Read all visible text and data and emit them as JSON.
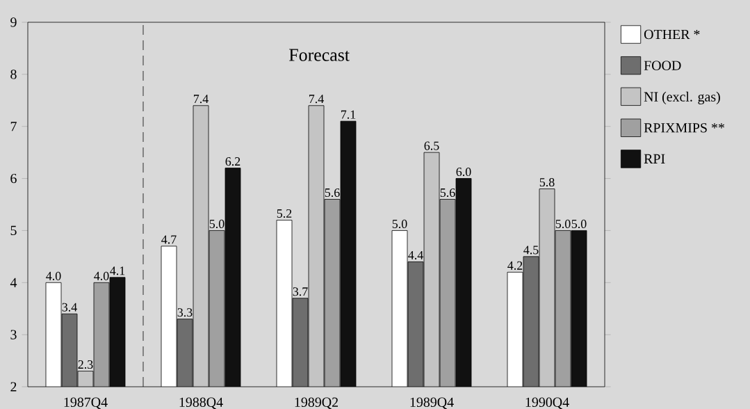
{
  "chart_data": {
    "type": "bar",
    "categories": [
      "1987Q4",
      "1988Q4",
      "1989Q2",
      "1989Q4",
      "1990Q4"
    ],
    "series": [
      {
        "name": "OTHER *",
        "color": "#ffffff",
        "values": [
          4.0,
          4.7,
          5.2,
          5.0,
          4.2
        ],
        "value_labels": [
          "4.0",
          "4.7",
          "5.2",
          "5.0",
          "4.2"
        ]
      },
      {
        "name": "FOOD",
        "color": "#6e6e6e",
        "values": [
          3.4,
          3.3,
          3.7,
          4.4,
          4.5
        ],
        "value_labels": [
          "3.4",
          "3.3",
          "3.7",
          "4.4",
          "4.5"
        ]
      },
      {
        "name": "NI (excl. gas)",
        "color": "#c4c4c4",
        "values": [
          2.3,
          7.4,
          7.4,
          6.5,
          5.8
        ],
        "value_labels": [
          "2.3",
          "7.4",
          "7.4",
          "6.5",
          "5.8"
        ]
      },
      {
        "name": "RPIXMIPS **",
        "color": "#a0a0a0",
        "values": [
          4.0,
          5.0,
          5.6,
          5.6,
          5.0
        ],
        "value_labels": [
          "4.0",
          "5.0",
          "5.6",
          "5.6",
          "5.0"
        ]
      },
      {
        "name": "RPI",
        "color": "#111111",
        "values": [
          4.1,
          6.2,
          7.1,
          6.0,
          5.0
        ],
        "value_labels": [
          "4.1",
          "6.2",
          "7.1",
          "6.0",
          "5.0"
        ]
      }
    ],
    "ylim": [
      2,
      9
    ],
    "yticks": [
      2,
      3,
      4,
      5,
      6,
      7,
      8,
      9
    ],
    "legend": "right",
    "annotations": [
      "Forecast"
    ]
  }
}
